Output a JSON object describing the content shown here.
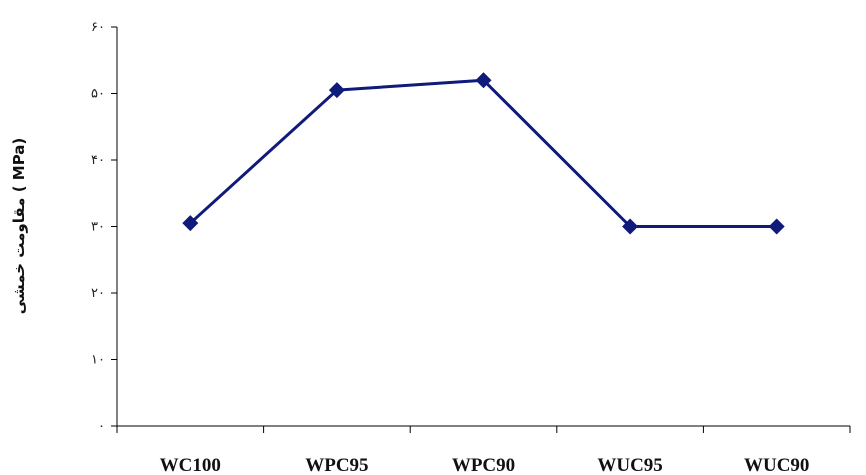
{
  "chart_data": {
    "type": "line",
    "categories": [
      "WC100",
      "WPC95",
      "WPC90",
      "WUC95",
      "WUC90"
    ],
    "series": [
      {
        "values": [
          30.5,
          50.5,
          52,
          30,
          30
        ]
      }
    ],
    "ylabel": "مقاومت خمشی ( MPa)",
    "ylim": [
      0,
      60
    ],
    "yticks": [
      {
        "value": 0,
        "label": "۰"
      },
      {
        "value": 10,
        "label": "۱۰"
      },
      {
        "value": 20,
        "label": "۲۰"
      },
      {
        "value": 30,
        "label": "۳۰"
      },
      {
        "value": 40,
        "label": "۴۰"
      },
      {
        "value": 50,
        "label": "۵۰"
      },
      {
        "value": 60,
        "label": "۶۰"
      }
    ],
    "grid": false,
    "legend": "none",
    "line_color": "#0f1a7a",
    "marker": "diamond"
  }
}
